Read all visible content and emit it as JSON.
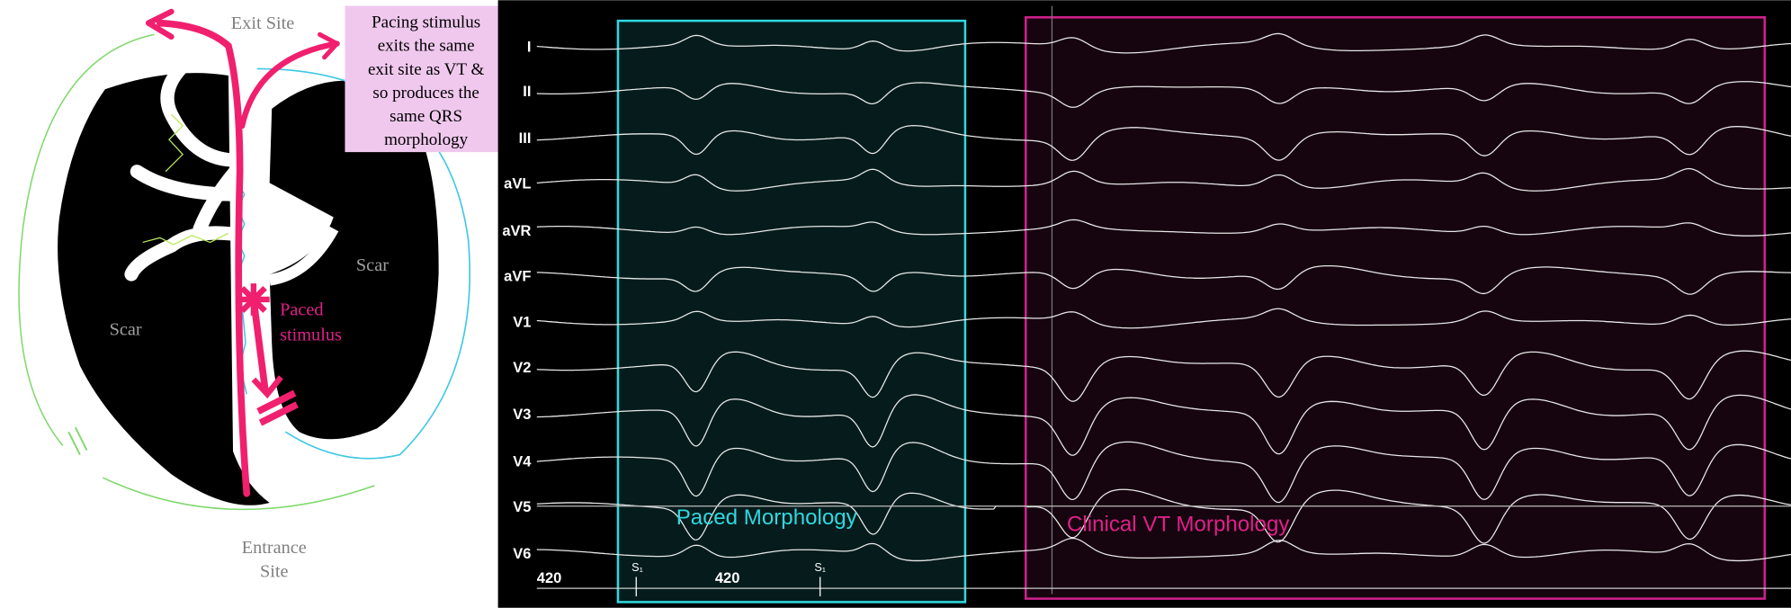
{
  "diagram": {
    "exit_site": "Exit Site",
    "note_lines": [
      "Pacing stimulus",
      "exits the same",
      "exit site as VT &",
      "so produces the",
      "same QRS",
      "morphology"
    ],
    "scar_left": "Scar",
    "scar_right": "Scar",
    "paced_stimulus": [
      "Paced",
      "stimulus"
    ],
    "entrance_site": [
      "Entrance",
      "Site"
    ]
  },
  "ecg": {
    "leads": [
      "I",
      "II",
      "III",
      "aVL",
      "aVR",
      "aVF",
      "V1",
      "V2",
      "V3",
      "V4",
      "V5",
      "V6"
    ],
    "paced_label": "Paced Morphology",
    "vt_label": "Clinical VT Morphology",
    "axis_labels": [
      "420",
      "420"
    ],
    "stim_labels": [
      "S₁",
      "S₁"
    ]
  }
}
